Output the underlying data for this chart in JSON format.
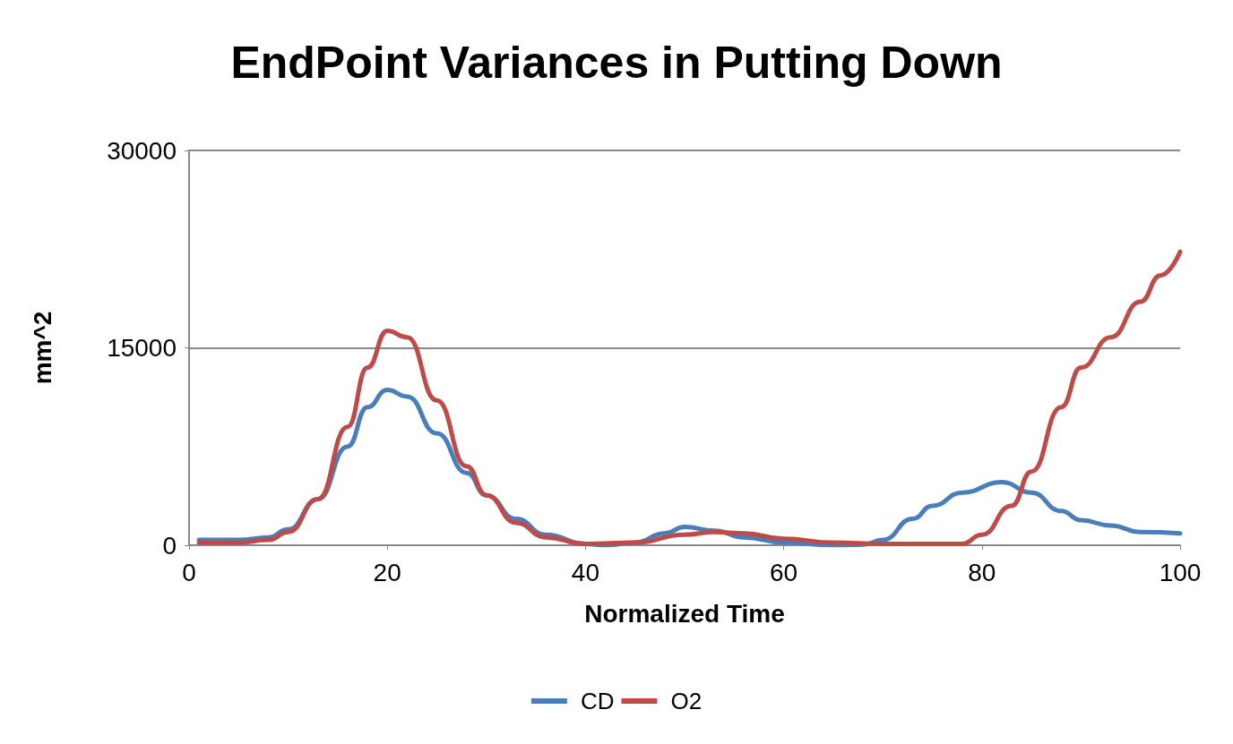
{
  "chart_data": {
    "type": "line",
    "title": "EndPoint Variances in Putting Down",
    "xlabel": "Normalized Time",
    "ylabel": "mm^2",
    "xlim": [
      0,
      100
    ],
    "xticks": [
      0,
      20,
      40,
      60,
      80,
      100
    ],
    "ylim": [
      0,
      30000
    ],
    "yticks": [
      0,
      15000,
      30000
    ],
    "grid": "y",
    "legend": "bottom",
    "marker": "none",
    "line_style": "solid",
    "series": [
      {
        "name": "CD",
        "color": "#4a7ebb",
        "x": [
          1,
          5,
          8,
          10,
          13,
          16,
          18,
          20,
          22,
          25,
          28,
          30,
          33,
          36,
          40,
          42,
          45,
          48,
          50,
          53,
          56,
          60,
          65,
          68,
          70,
          73,
          75,
          78,
          82,
          85,
          88,
          90,
          93,
          96,
          100
        ],
        "values": [
          400,
          400,
          600,
          1200,
          3500,
          7500,
          10500,
          11800,
          11300,
          8500,
          5500,
          3800,
          2000,
          800,
          100,
          0,
          200,
          900,
          1400,
          1100,
          600,
          200,
          0,
          50,
          400,
          2000,
          3000,
          4000,
          4800,
          4000,
          2600,
          1900,
          1500,
          1000,
          900
        ]
      },
      {
        "name": "O2",
        "color": "#be4b48",
        "x": [
          1,
          5,
          8,
          10,
          13,
          16,
          18,
          20,
          22,
          25,
          28,
          30,
          33,
          36,
          40,
          45,
          50,
          53,
          56,
          60,
          65,
          70,
          78,
          80,
          83,
          85,
          88,
          90,
          93,
          96,
          98,
          100
        ],
        "values": [
          200,
          200,
          400,
          1000,
          3500,
          9000,
          13500,
          16300,
          15800,
          11000,
          6000,
          3800,
          1700,
          600,
          100,
          200,
          800,
          1000,
          900,
          500,
          200,
          100,
          100,
          800,
          3000,
          5600,
          10500,
          13500,
          15800,
          18500,
          20500,
          22300
        ]
      }
    ]
  }
}
